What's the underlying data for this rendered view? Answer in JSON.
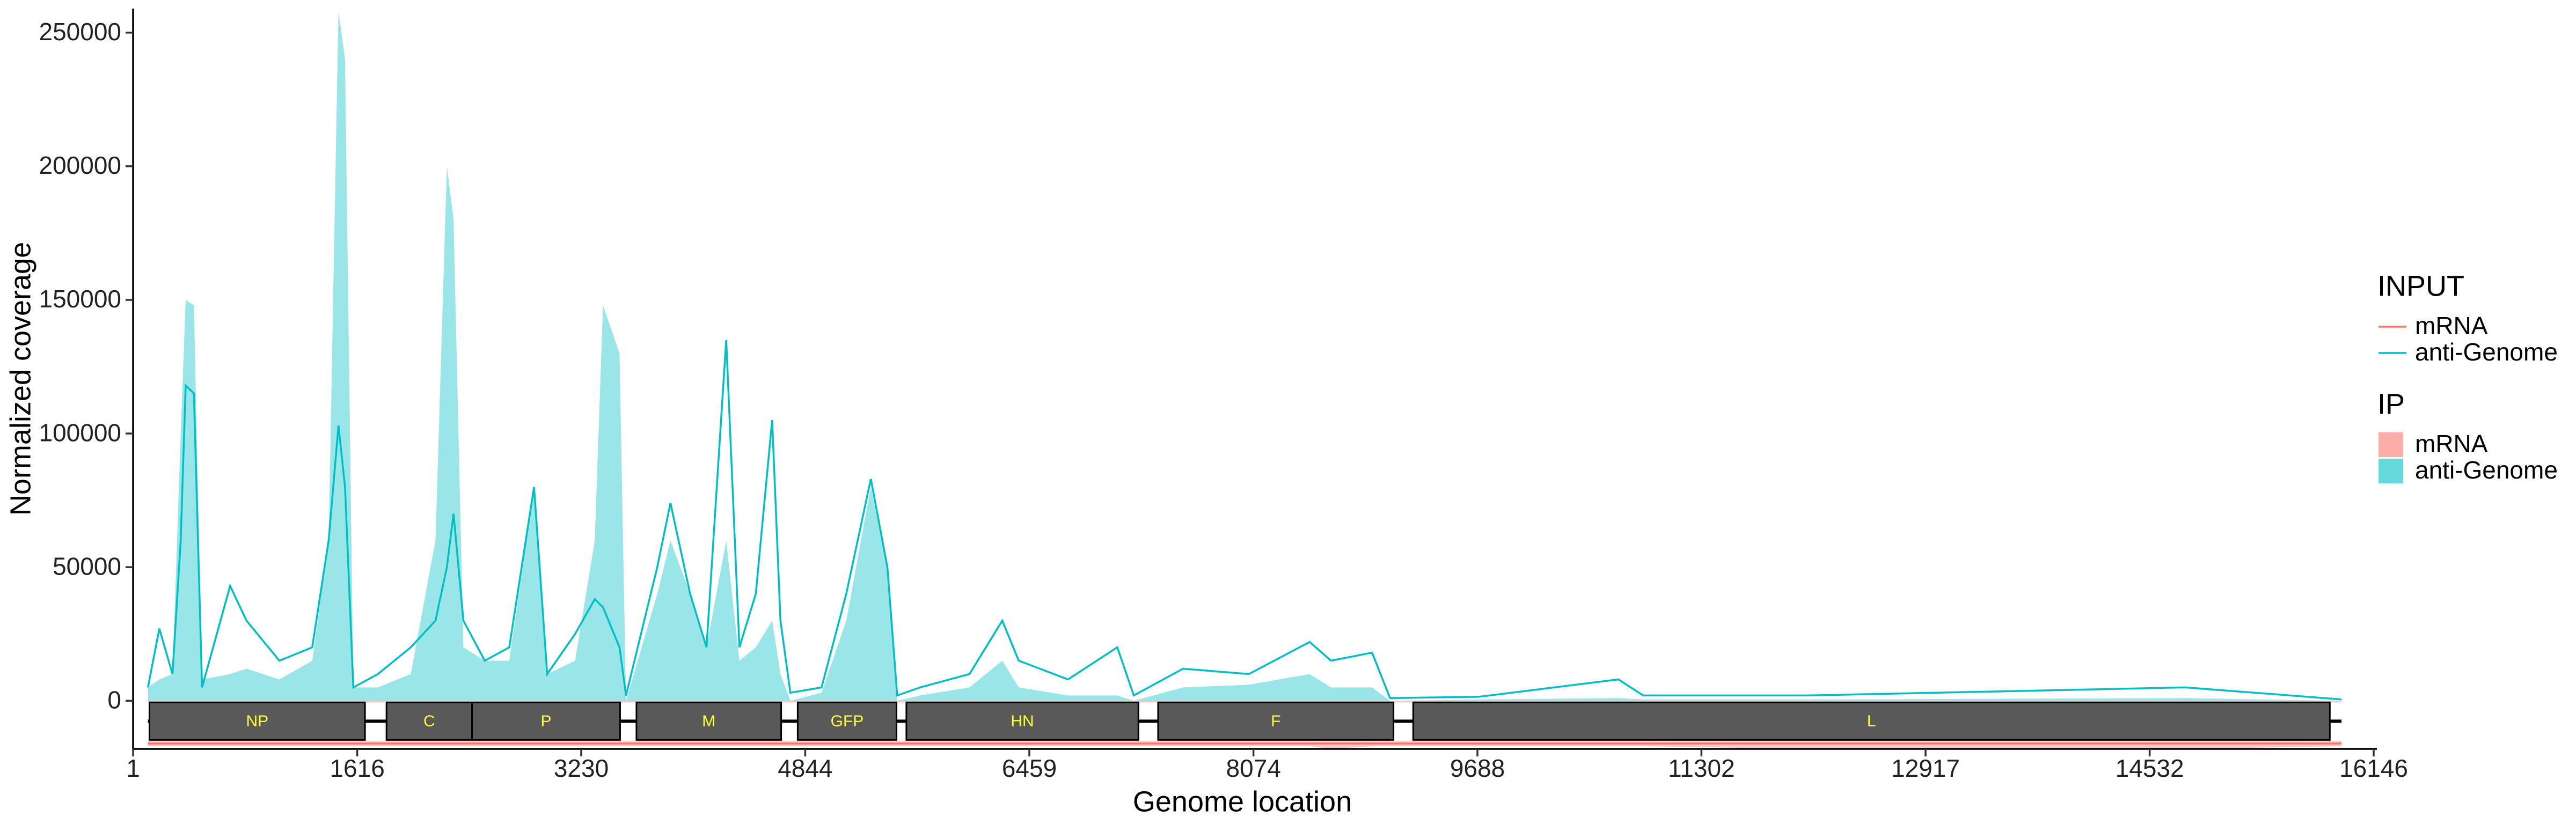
{
  "chart_data": {
    "type": "coverage",
    "x_label": "Genome location",
    "y_label": "Normalized coverage",
    "xlim": [
      1,
      16146
    ],
    "xticks": [
      1,
      1616,
      3230,
      4844,
      6459,
      8074,
      9688,
      11302,
      12917,
      14532,
      16146
    ],
    "ylim": [
      -18000,
      259000
    ],
    "yticks": [
      0,
      50000,
      100000,
      150000,
      200000,
      250000
    ],
    "x": [
      108,
      190,
      285,
      344,
      380,
      439,
      498,
      700,
      818,
      1055,
      1292,
      1410,
      1481,
      1528,
      1588,
      1765,
      2002,
      2180,
      2262,
      2310,
      2381,
      2535,
      2712,
      2890,
      2985,
      3186,
      3328,
      3387,
      3506,
      3553,
      3778,
      3873,
      4015,
      4133,
      4275,
      4370,
      4488,
      4606,
      4666,
      4737,
      4962,
      5140,
      5317,
      5436,
      5507,
      5672,
      6028,
      6264,
      6383,
      6738,
      7093,
      7212,
      7567,
      8041,
      8479,
      8633,
      8929,
      9058,
      9698,
      10704,
      10882,
      12066,
      14790,
      15914
    ],
    "legend_groups": [
      "INPUT",
      "IP"
    ],
    "series": [
      {
        "name": "mRNA",
        "group": "INPUT",
        "mark": "line",
        "color": "#F8766D",
        "values": [
          -16000,
          -16000,
          -16000,
          -16000,
          -16000,
          -16000,
          -16000,
          -16000,
          -16000,
          -16000,
          -16000,
          -16000,
          -16000,
          -16000,
          -16000,
          -16000,
          -16000,
          -16000,
          -16000,
          -16000,
          -16000,
          -16000,
          -16000,
          -16000,
          -16000,
          -16000,
          -16000,
          -16000,
          -16000,
          -16000,
          -16000,
          -16000,
          -16000,
          -16000,
          -16000,
          -16000,
          -16000,
          -16000,
          -16000,
          -16000,
          -16000,
          -16000,
          -16000,
          -16000,
          -16000,
          -16000,
          -16000,
          -16000,
          -16000,
          -16000,
          -16000,
          -16000,
          -16000,
          -16000,
          -16000,
          -16000,
          -16000,
          -16000,
          -16000,
          -16000,
          -16000,
          -16000,
          -16000,
          -16000
        ]
      },
      {
        "name": "anti-Genome",
        "group": "INPUT",
        "mark": "line",
        "color": "#00BFC4",
        "values": [
          5000,
          27000,
          10000,
          60000,
          118000,
          115000,
          5000,
          43000,
          30000,
          15000,
          20000,
          60000,
          103000,
          80000,
          5000,
          10000,
          20000,
          30000,
          50000,
          70000,
          30000,
          15000,
          20000,
          80000,
          10000,
          25000,
          38000,
          35000,
          20000,
          2000,
          50000,
          74000,
          40000,
          20000,
          135000,
          20000,
          40000,
          105000,
          30000,
          3000,
          5000,
          40000,
          83000,
          50000,
          2000,
          5000,
          10000,
          30000,
          15000,
          8000,
          20000,
          2000,
          12000,
          10000,
          22000,
          15000,
          18000,
          1000,
          1500,
          8000,
          2000,
          2000,
          5000,
          500
        ]
      },
      {
        "name": "mRNA",
        "group": "IP",
        "mark": "area",
        "color": "#F8766D",
        "values": [
          -17000,
          -17000,
          -17000,
          -17000,
          -17000,
          -17000,
          -17000,
          -17000,
          -17000,
          -17000,
          -17000,
          -17000,
          -17000,
          -17000,
          -17000,
          -17000,
          -17000,
          -17000,
          -17000,
          -17000,
          -17000,
          -17000,
          -17000,
          -17000,
          -17000,
          -17000,
          -17000,
          -17000,
          -17000,
          -17000,
          -17000,
          -17000,
          -17000,
          -17000,
          -17000,
          -17000,
          -17000,
          -17000,
          -17000,
          -17000,
          -17000,
          -17000,
          -17000,
          -17000,
          -17000,
          -17000,
          -17000,
          -17000,
          -17000,
          -17000,
          -17000,
          -17000,
          -17000,
          -17000,
          -17000,
          -18000,
          -17000,
          -17000,
          -17000,
          -17000,
          -17000,
          -18000,
          -18000,
          -17000
        ]
      },
      {
        "name": "anti-Genome",
        "group": "IP",
        "mark": "area",
        "color": "#00BFC4",
        "values": [
          5000,
          8000,
          10000,
          100000,
          150000,
          148000,
          8000,
          10000,
          12000,
          8000,
          15000,
          60000,
          258000,
          240000,
          5000,
          5000,
          10000,
          60000,
          200000,
          180000,
          20000,
          15000,
          15000,
          80000,
          10000,
          15000,
          60000,
          148000,
          130000,
          0,
          40000,
          60000,
          40000,
          20000,
          60000,
          15000,
          20000,
          30000,
          10000,
          0,
          3000,
          30000,
          80000,
          50000,
          0,
          2000,
          5000,
          15000,
          5000,
          2000,
          2000,
          0,
          5000,
          6000,
          10000,
          5000,
          5000,
          0,
          500,
          1000,
          500,
          500,
          1000,
          0
        ]
      }
    ],
    "genes": [
      {
        "name": "NP",
        "start": 119,
        "end": 1672
      },
      {
        "name": "C",
        "start": 1827,
        "end": 2443
      },
      {
        "name": "P",
        "start": 2443,
        "end": 3510
      },
      {
        "name": "M",
        "start": 3628,
        "end": 4671
      },
      {
        "name": "GFP",
        "start": 4790,
        "end": 5502
      },
      {
        "name": "HN",
        "start": 5573,
        "end": 7245
      },
      {
        "name": "F",
        "start": 7387,
        "end": 9083
      },
      {
        "name": "L",
        "start": 9225,
        "end": 15830
      }
    ]
  }
}
